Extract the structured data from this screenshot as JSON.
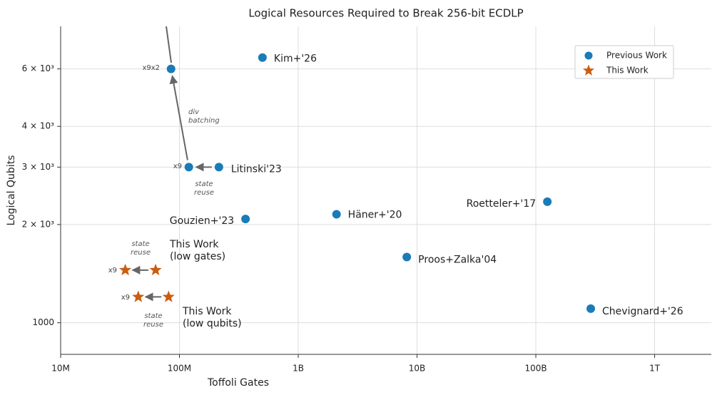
{
  "chart_data": {
    "type": "scatter",
    "title": "Logical Resources Required to Break 256-bit ECDLP",
    "x_label": "Toffoli Gates",
    "y_label": "Logical Qubits",
    "xscale": "log",
    "yscale": "log",
    "grid": true,
    "legend": "upper right",
    "xlim": [
      10000000,
      3000000000000
    ],
    "ylim": [
      800,
      8100
    ],
    "xticks": [
      {
        "value": 10000000,
        "label": "10M"
      },
      {
        "value": 100000000,
        "label": "100M"
      },
      {
        "value": 1000000000,
        "label": "1B"
      },
      {
        "value": 10000000000,
        "label": "10B"
      },
      {
        "value": 100000000000,
        "label": "100B"
      },
      {
        "value": 1000000000000,
        "label": "1T"
      }
    ],
    "yticks": [
      1000,
      {
        "value": 2000,
        "label": "2 × 10³"
      },
      {
        "value": 3000,
        "label": "3 × 10³"
      },
      {
        "value": 4000,
        "label": "4 × 10³"
      },
      {
        "value": 6000,
        "label": "6 × 10³"
      }
    ],
    "series": [
      {
        "name": "Previous Work",
        "color": "#1a7bb9",
        "marker": "circle",
        "x": [
          500000000,
          85000000,
          215000000,
          120000000,
          360000000,
          2100000000,
          125000000000,
          8200000000,
          290000000000
        ],
        "values": [
          6500,
          6000,
          3000,
          3000,
          2080,
          2150,
          2350,
          1590,
          1105
        ],
        "labels": [
          "Kim+'26",
          null,
          "Litinski'23",
          null,
          "Gouzien+'23",
          "Häner+'20",
          "Roetteler+'17",
          "Proos+Zalka'04",
          "Chevignard+'26"
        ]
      },
      {
        "name": "This Work",
        "color": "#cc5c0e",
        "marker": "star",
        "x": [
          63000000,
          35000000,
          81000000,
          45000000
        ],
        "values": [
          1450,
          1450,
          1200,
          1200
        ]
      }
    ],
    "annotations": [
      [
        "x9x2"
      ],
      [
        "x9"
      ],
      [
        "div",
        "batching"
      ],
      [
        "state",
        "reuse"
      ],
      [
        "state",
        "reuse"
      ],
      [
        "state",
        "reuse"
      ],
      [
        "x9"
      ],
      [
        "x9"
      ],
      [
        "This Work",
        "(low gates)"
      ],
      [
        "This Work",
        "(low qubits)"
      ]
    ]
  }
}
